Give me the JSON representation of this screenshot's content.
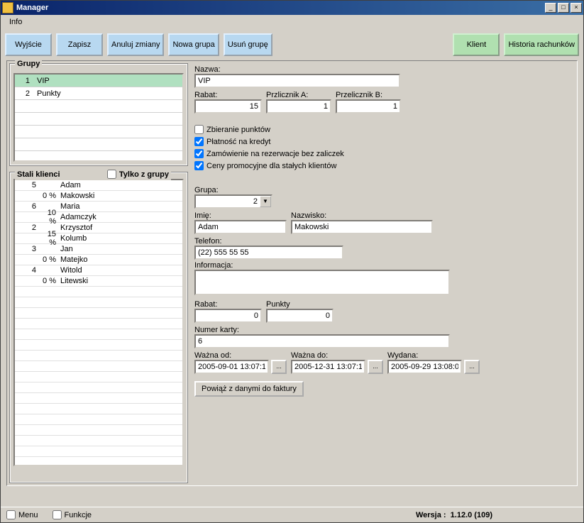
{
  "window": {
    "title": "Manager"
  },
  "menu": {
    "info": "Info"
  },
  "toolbar": {
    "wyjscie": "Wyjście",
    "zapisz": "Zapisz",
    "anuluj": "Anuluj zmiany",
    "nowa_grupa": "Nowa grupa",
    "usun_grupe": "Usuń grupę",
    "klient": "Klient",
    "historia": "Historia rachunków"
  },
  "grupy": {
    "title": "Grupy",
    "rows": [
      {
        "num": "1",
        "name": "VIP",
        "selected": true
      },
      {
        "num": "2",
        "name": "Punkty",
        "selected": false
      }
    ]
  },
  "group_form": {
    "labels": {
      "nazwa": "Nazwa:",
      "rabat": "Rabat:",
      "przel_a": "Przlicznik A:",
      "przel_b": "Przelicznik B:"
    },
    "values": {
      "nazwa": "VIP",
      "rabat": "15",
      "przel_a": "1",
      "przel_b": "1"
    },
    "checks": {
      "zbieranie": {
        "label": "Zbieranie punktów",
        "checked": false
      },
      "platnosc": {
        "label": "Płatność na kredyt",
        "checked": true
      },
      "zamowienie": {
        "label": "Zamówienie na rezerwacje bez zaliczek",
        "checked": true
      },
      "ceny": {
        "label": "Ceny promocyjne dla stałych klientów",
        "checked": true
      }
    }
  },
  "klienci": {
    "title": "Stali klienci",
    "filter_label": "Tylko z grupy",
    "rows": [
      {
        "id": "5",
        "pct": "0 %",
        "first": "Adam",
        "last": "Makowski"
      },
      {
        "id": "6",
        "pct": "10 %",
        "first": "Maria",
        "last": "Adamczyk"
      },
      {
        "id": "2",
        "pct": "15 %",
        "first": "Krzysztof",
        "last": "Kolumb"
      },
      {
        "id": "3",
        "pct": "0 %",
        "first": "Jan",
        "last": "Matejko"
      },
      {
        "id": "4",
        "pct": "0 %",
        "first": "Witold",
        "last": "Litewski"
      }
    ]
  },
  "client_form": {
    "labels": {
      "grupa": "Grupa:",
      "imie": "Imię:",
      "nazwisko": "Nazwisko:",
      "telefon": "Telefon:",
      "informacja": "Informacja:",
      "rabat": "Rabat:",
      "punkty": "Punkty",
      "numer_karty": "Numer karty:",
      "wazna_od": "Ważna od:",
      "wazna_do": "Ważna do:",
      "wydana": "Wydana:"
    },
    "values": {
      "grupa": "2",
      "imie": "Adam",
      "nazwisko": "Makowski",
      "telefon": "(22) 555 55 55",
      "informacja": "",
      "rabat": "0",
      "punkty": "0",
      "numer_karty": "6",
      "wazna_od": "2005-09-01 13:07:1",
      "wazna_do": "2005-12-31 13:07:1",
      "wydana": "2005-09-29 13:08:0"
    },
    "btn_powiaz": "Powiąż z danymi do faktury"
  },
  "status": {
    "menu": "Menu",
    "funkcje": "Funkcje",
    "wersja_label": "Wersja :",
    "wersja": "1.12.0 (109)"
  },
  "colors": {
    "bg": "#d4d0c8",
    "titlebar_from": "#0a246a",
    "titlebar_to": "#3a6ea5",
    "btn_blue": "#b8d8f0",
    "btn_green": "#b0e0b0",
    "selected_row": "#b0e0c0"
  }
}
